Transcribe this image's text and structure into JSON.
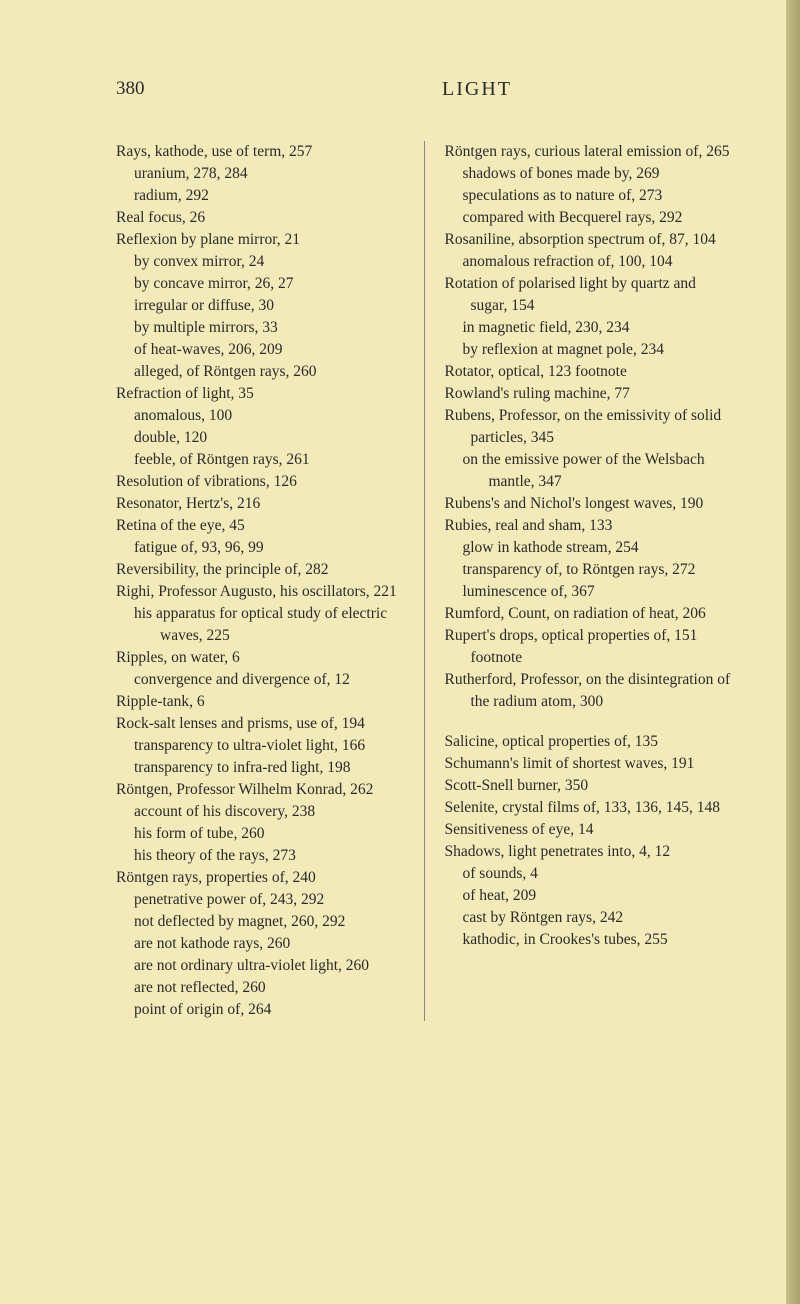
{
  "header": {
    "page_number": "380",
    "title": "LIGHT"
  },
  "left_column": [
    {
      "cls": "entry",
      "text": "Rays, kathode, use of term, 257"
    },
    {
      "cls": "sub",
      "text": "uranium, 278, 284"
    },
    {
      "cls": "sub",
      "text": "radium, 292"
    },
    {
      "cls": "entry",
      "text": "Real focus, 26"
    },
    {
      "cls": "entry",
      "text": "Reflexion by plane mirror, 21"
    },
    {
      "cls": "sub",
      "text": "by convex mirror, 24"
    },
    {
      "cls": "sub",
      "text": "by concave mirror, 26, 27"
    },
    {
      "cls": "sub",
      "text": "irregular or diffuse, 30"
    },
    {
      "cls": "sub",
      "text": "by multiple mirrors, 33"
    },
    {
      "cls": "sub",
      "text": "of heat-waves, 206, 209"
    },
    {
      "cls": "sub",
      "text": "alleged, of Röntgen rays, 260"
    },
    {
      "cls": "entry",
      "text": "Refraction of light, 35"
    },
    {
      "cls": "sub",
      "text": "anomalous, 100"
    },
    {
      "cls": "sub",
      "text": "double, 120"
    },
    {
      "cls": "sub",
      "text": "feeble, of Röntgen rays, 261"
    },
    {
      "cls": "entry",
      "text": "Resolution of vibrations, 126"
    },
    {
      "cls": "entry",
      "text": "Resonator, Hertz's, 216"
    },
    {
      "cls": "entry",
      "text": "Retina of the eye, 45"
    },
    {
      "cls": "sub",
      "text": "fatigue of, 93, 96, 99"
    },
    {
      "cls": "entry",
      "text": "Reversibility, the principle of, 282"
    },
    {
      "cls": "entry",
      "text": "Righi, Professor Augusto, his oscillators, 221"
    },
    {
      "cls": "sub",
      "text": "his apparatus for optical study of electric waves, 225"
    },
    {
      "cls": "entry",
      "text": "Ripples, on water, 6"
    },
    {
      "cls": "sub",
      "text": "convergence and divergence of, 12"
    },
    {
      "cls": "entry",
      "text": "Ripple-tank, 6"
    },
    {
      "cls": "entry",
      "text": "Rock-salt lenses and prisms, use of, 194"
    },
    {
      "cls": "sub",
      "text": "transparency to ultra-violet light, 166"
    },
    {
      "cls": "sub",
      "text": "transparency to infra-red light, 198"
    },
    {
      "cls": "entry",
      "text": "Röntgen, Professor Wilhelm Konrad, 262"
    },
    {
      "cls": "sub",
      "text": "account of his discovery, 238"
    },
    {
      "cls": "sub",
      "text": "his form of tube, 260"
    },
    {
      "cls": "sub",
      "text": "his theory of the rays, 273"
    },
    {
      "cls": "entry",
      "text": "Röntgen rays, properties of, 240"
    },
    {
      "cls": "sub",
      "text": "penetrative power of, 243, 292"
    },
    {
      "cls": "sub",
      "text": "not deflected by magnet, 260, 292"
    },
    {
      "cls": "sub",
      "text": "are not kathode rays, 260"
    },
    {
      "cls": "sub",
      "text": "are not ordinary ultra-violet light, 260"
    },
    {
      "cls": "sub",
      "text": "are not reflected, 260"
    },
    {
      "cls": "sub",
      "text": "point of origin of, 264"
    }
  ],
  "right_column": [
    {
      "cls": "entry",
      "text": "Röntgen rays, curious lateral emission of, 265"
    },
    {
      "cls": "sub",
      "text": "shadows of bones made by, 269"
    },
    {
      "cls": "sub",
      "text": "speculations as to nature of, 273"
    },
    {
      "cls": "sub",
      "text": "compared with Becquerel rays, 292"
    },
    {
      "cls": "entry",
      "text": "Rosaniline, absorption spectrum of, 87, 104"
    },
    {
      "cls": "sub",
      "text": "anomalous refraction of, 100, 104"
    },
    {
      "cls": "entry",
      "text": "Rotation of polarised light by quartz and sugar, 154"
    },
    {
      "cls": "sub",
      "text": "in magnetic field, 230, 234"
    },
    {
      "cls": "sub",
      "text": "by reflexion at magnet pole, 234"
    },
    {
      "cls": "entry",
      "text": "Rotator, optical, 123 footnote"
    },
    {
      "cls": "entry",
      "text": "Rowland's ruling machine, 77"
    },
    {
      "cls": "entry",
      "text": "Rubens, Professor, on the emissivity of solid particles, 345"
    },
    {
      "cls": "sub",
      "text": "on the emissive power of the Welsbach mantle, 347"
    },
    {
      "cls": "entry",
      "text": "Rubens's and Nichol's longest waves, 190"
    },
    {
      "cls": "entry",
      "text": "Rubies, real and sham, 133"
    },
    {
      "cls": "sub",
      "text": "glow in kathode stream, 254"
    },
    {
      "cls": "sub",
      "text": "transparency of, to Röntgen rays, 272"
    },
    {
      "cls": "sub",
      "text": "luminescence of, 367"
    },
    {
      "cls": "entry",
      "text": "Rumford, Count, on radiation of heat, 206"
    },
    {
      "cls": "entry",
      "text": "Rupert's drops, optical properties of, 151 footnote"
    },
    {
      "cls": "entry",
      "text": "Rutherford, Professor, on the disintegration of the radium atom, 300"
    },
    {
      "cls": "gap",
      "text": ""
    },
    {
      "cls": "entry",
      "text": "Salicine, optical properties of, 135"
    },
    {
      "cls": "entry",
      "text": "Schumann's limit of shortest waves, 191"
    },
    {
      "cls": "entry",
      "text": "Scott-Snell burner, 350"
    },
    {
      "cls": "entry",
      "text": "Selenite, crystal films of, 133, 136, 145, 148"
    },
    {
      "cls": "entry",
      "text": "Sensitiveness of eye, 14"
    },
    {
      "cls": "entry",
      "text": "Shadows, light penetrates into, 4, 12"
    },
    {
      "cls": "sub",
      "text": "of sounds, 4"
    },
    {
      "cls": "sub",
      "text": "of heat, 209"
    },
    {
      "cls": "sub",
      "text": "cast by Röntgen rays, 242"
    },
    {
      "cls": "sub",
      "text": "kathodic, in Crookes's tubes, 255"
    }
  ]
}
